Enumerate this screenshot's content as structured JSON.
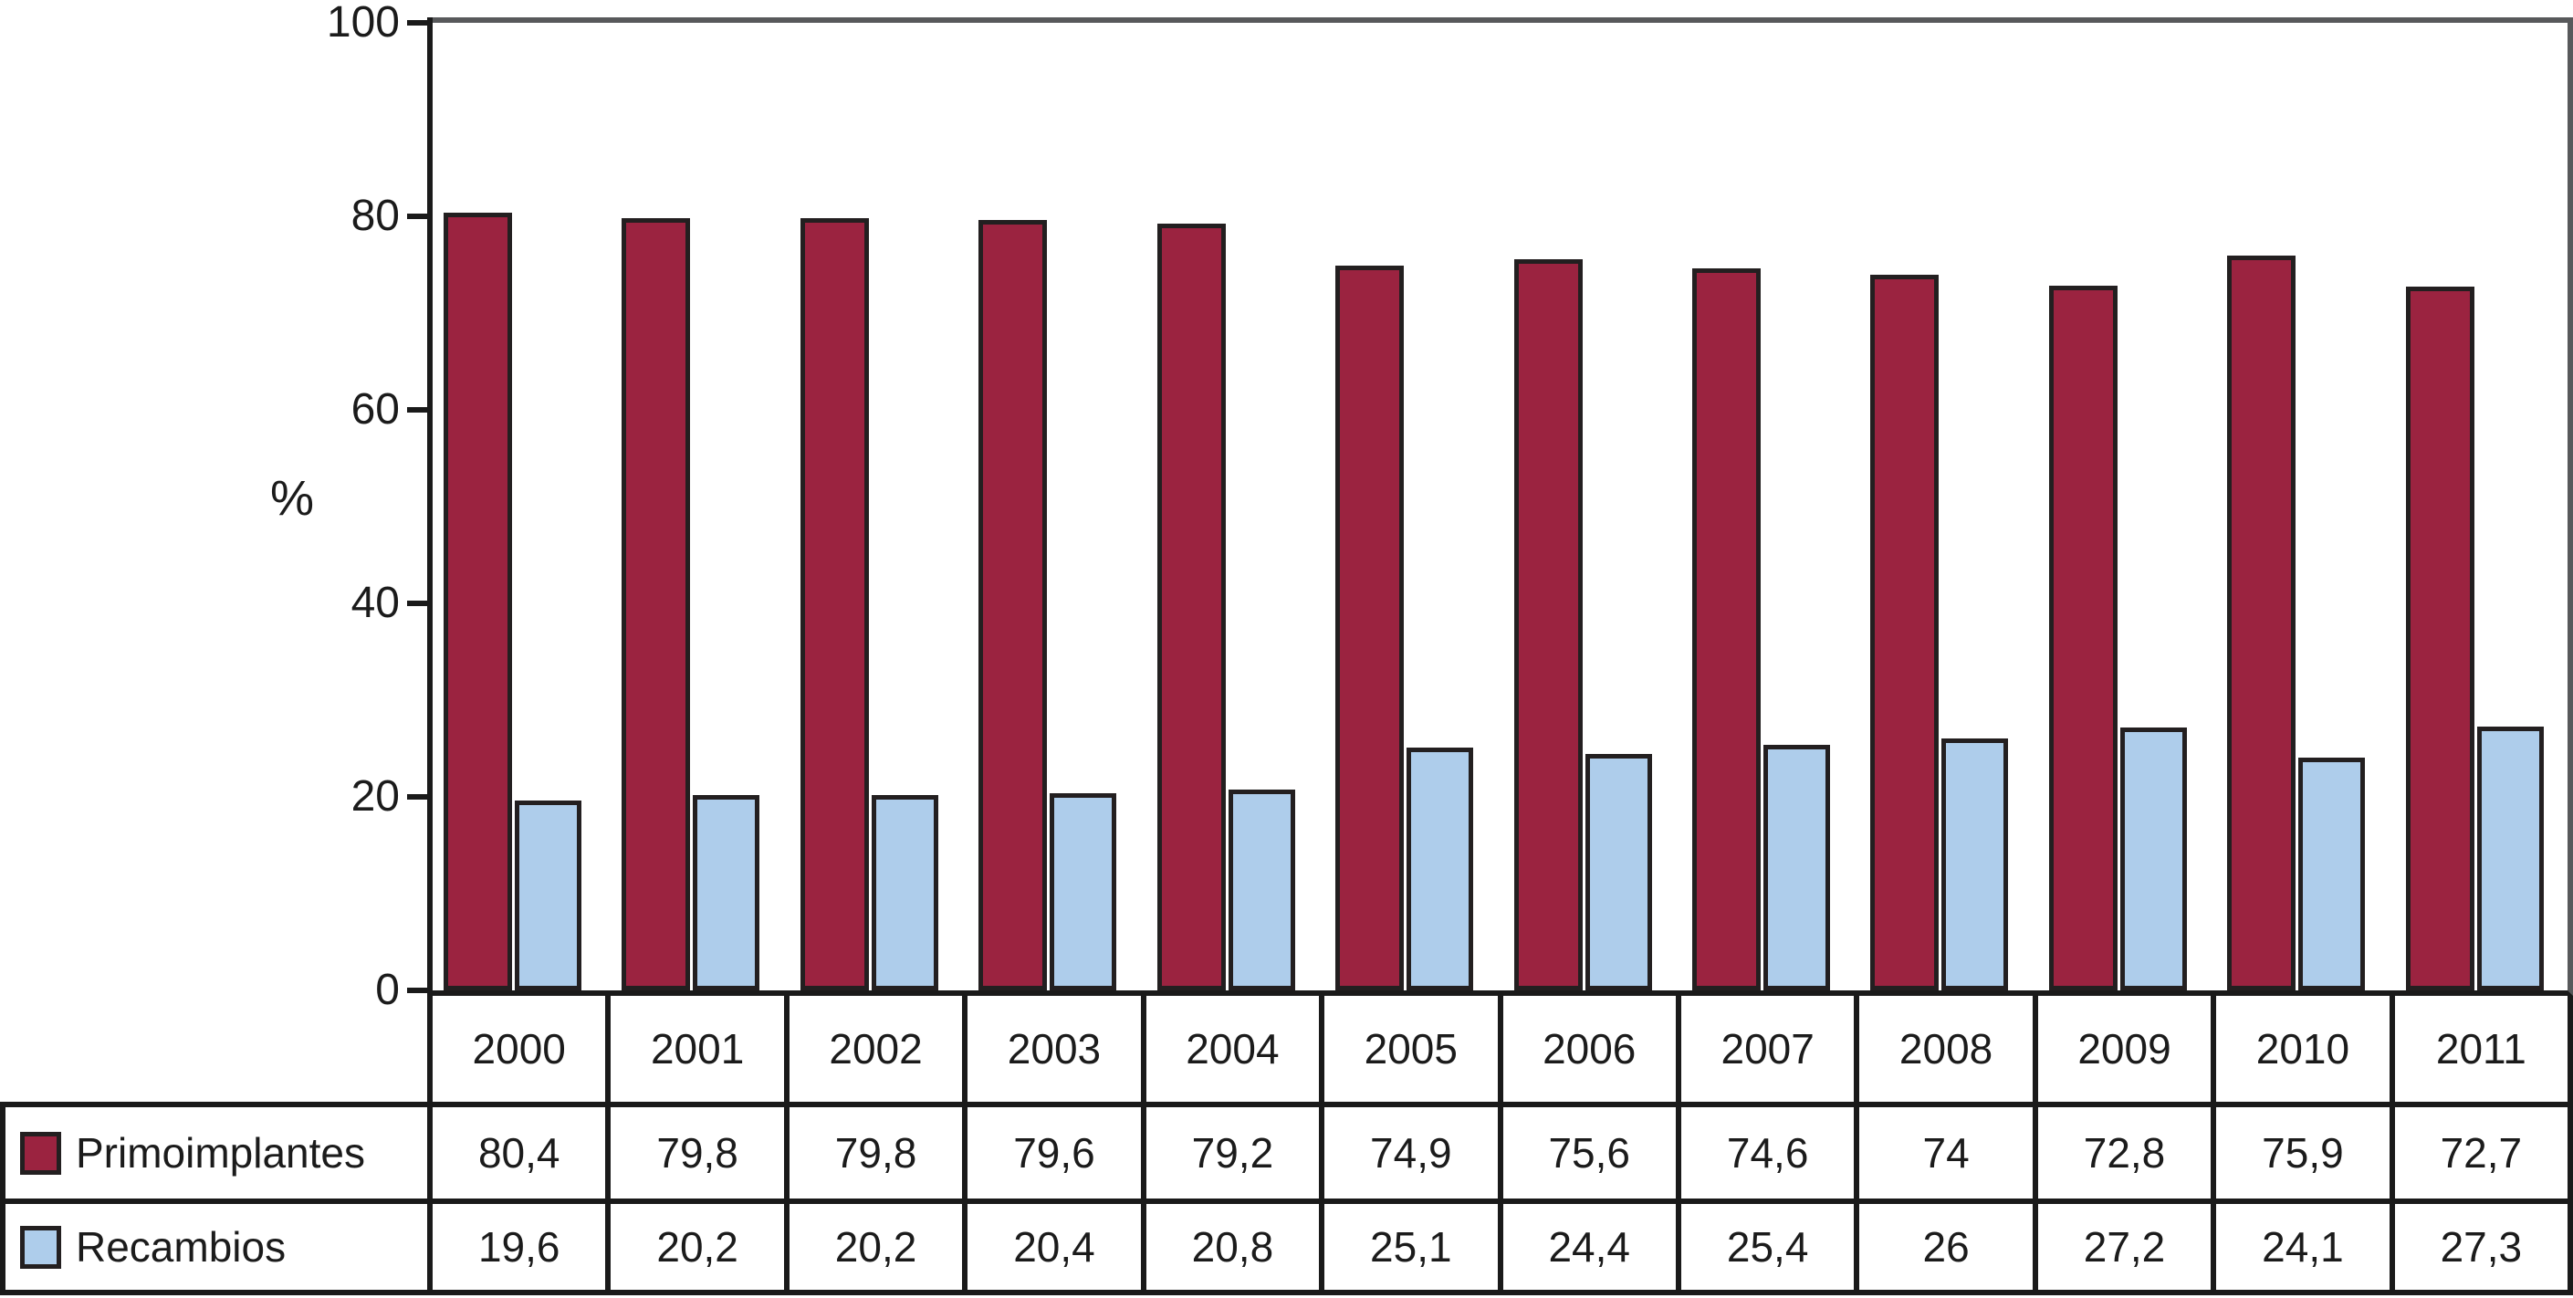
{
  "chart_data": {
    "type": "bar",
    "title": "",
    "xlabel": "",
    "ylabel": "%",
    "ylim": [
      0,
      100
    ],
    "yticks": [
      0,
      20,
      40,
      60,
      80,
      100
    ],
    "grid": false,
    "legend_position": "table-left",
    "frame_color": "#58595B",
    "axis_color": "#1A1A1A",
    "bar_border_color": "#231F20",
    "categories": [
      "2000",
      "2001",
      "2002",
      "2003",
      "2004",
      "2005",
      "2006",
      "2007",
      "2008",
      "2009",
      "2010",
      "2011"
    ],
    "series": [
      {
        "name": "Primoimplantes",
        "color": "#9B2340",
        "values": [
          80.4,
          79.8,
          79.8,
          79.6,
          79.2,
          74.9,
          75.6,
          74.6,
          74,
          72.8,
          75.9,
          72.7
        ],
        "display_values": [
          "80,4",
          "79,8",
          "79,8",
          "79,6",
          "79,2",
          "74,9",
          "75,6",
          "74,6",
          "74",
          "72,8",
          "75,9",
          "72,7"
        ]
      },
      {
        "name": "Recambios",
        "color": "#AECDEB",
        "values": [
          19.6,
          20.2,
          20.2,
          20.4,
          20.8,
          25.1,
          24.4,
          25.4,
          26,
          27.2,
          24.1,
          27.3
        ],
        "display_values": [
          "19,6",
          "20,2",
          "20,2",
          "20,4",
          "20,8",
          "25,1",
          "24,4",
          "25,4",
          "26",
          "27,2",
          "24,1",
          "27,3"
        ]
      }
    ]
  }
}
